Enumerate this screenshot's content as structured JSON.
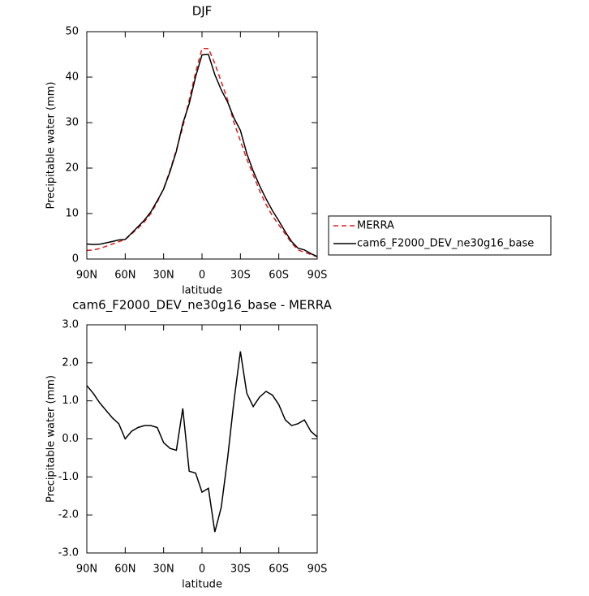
{
  "chart_data": [
    {
      "type": "line",
      "title": "DJF",
      "x_label": "latitude",
      "y_label": "Precipitable water (mm)",
      "x": [
        90,
        85,
        80,
        75,
        70,
        65,
        60,
        55,
        50,
        45,
        40,
        35,
        30,
        25,
        20,
        15,
        10,
        5,
        0,
        -5,
        -10,
        -15,
        -20,
        -25,
        -30,
        -35,
        -40,
        -45,
        -50,
        -55,
        -60,
        -65,
        -70,
        -75,
        -80,
        -85,
        -90
      ],
      "xlim": [
        90,
        -90
      ],
      "xticks": [
        {
          "value": 90,
          "label": "90N"
        },
        {
          "value": 60,
          "label": "60N"
        },
        {
          "value": 30,
          "label": "30N"
        },
        0,
        {
          "value": -30,
          "label": "30S"
        },
        {
          "value": -60,
          "label": "60S"
        },
        {
          "value": -90,
          "label": "90S"
        }
      ],
      "ylim": [
        0,
        50
      ],
      "yticks": [
        0,
        10,
        20,
        30,
        40,
        50
      ],
      "legend": "right",
      "series": [
        {
          "name": "MERRA",
          "color": "#e41a1c",
          "dashed": true,
          "values": [
            1.9,
            2.0,
            2.3,
            2.8,
            3.3,
            3.8,
            4.3,
            5.5,
            6.8,
            8.2,
            10,
            12.5,
            15.5,
            19.5,
            24,
            29,
            35,
            41,
            46.3,
            46.3,
            43,
            39,
            35,
            30,
            26,
            22,
            18.5,
            15,
            12,
            9.5,
            7.5,
            5.5,
            3.5,
            2,
            1.5,
            1.0,
            0.5
          ]
        },
        {
          "name": "cam6_F2000_DEV_ne30g16_base",
          "color": "#000000",
          "dashed": false,
          "values": [
            3.3,
            3.2,
            3.25,
            3.55,
            3.85,
            4.2,
            4.3,
            5.7,
            7.1,
            8.55,
            10.35,
            12.8,
            15.4,
            19.25,
            23.7,
            29.8,
            34.15,
            40.1,
            44.9,
            45,
            40.55,
            37.2,
            34.5,
            31,
            28.3,
            23.2,
            19.35,
            16.1,
            13.25,
            10.65,
            8.4,
            6.0,
            3.85,
            2.4,
            2.0,
            1.2,
            0.55
          ]
        }
      ]
    },
    {
      "type": "line",
      "title": "cam6_F2000_DEV_ne30g16_base - MERRA",
      "x_label": "latitude",
      "y_label": "Precipitable water (mm)",
      "x": [
        90,
        85,
        80,
        75,
        70,
        65,
        60,
        55,
        50,
        45,
        40,
        35,
        30,
        25,
        20,
        15,
        10,
        5,
        0,
        -5,
        -10,
        -15,
        -20,
        -25,
        -30,
        -35,
        -40,
        -45,
        -50,
        -55,
        -60,
        -65,
        -70,
        -75,
        -80,
        -85,
        -90
      ],
      "xlim": [
        90,
        -90
      ],
      "xticks": [
        {
          "value": 90,
          "label": "90N"
        },
        {
          "value": 60,
          "label": "60N"
        },
        {
          "value": 30,
          "label": "30N"
        },
        0,
        {
          "value": -30,
          "label": "30S"
        },
        {
          "value": -60,
          "label": "60S"
        },
        {
          "value": -90,
          "label": "90S"
        }
      ],
      "ylim": [
        -3,
        3
      ],
      "yticks": [
        {
          "value": -3,
          "label": "-3.0"
        },
        {
          "value": -2,
          "label": "-2.0"
        },
        {
          "value": -1,
          "label": "-1.0"
        },
        {
          "value": 0,
          "label": "0.0"
        },
        {
          "value": 1,
          "label": "1.0"
        },
        {
          "value": 2,
          "label": "2.0"
        },
        {
          "value": 3,
          "label": "3.0"
        }
      ],
      "series": [
        {
          "color": "#000000",
          "dashed": false,
          "values": [
            1.4,
            1.2,
            0.95,
            0.75,
            0.55,
            0.4,
            0.0,
            0.2,
            0.3,
            0.35,
            0.35,
            0.3,
            -0.1,
            -0.25,
            -0.3,
            0.8,
            -0.85,
            -0.9,
            -1.4,
            -1.3,
            -2.45,
            -1.8,
            -0.5,
            1.0,
            2.3,
            1.2,
            0.85,
            1.1,
            1.25,
            1.15,
            0.9,
            0.5,
            0.35,
            0.4,
            0.5,
            0.2,
            0.05
          ]
        }
      ]
    }
  ]
}
